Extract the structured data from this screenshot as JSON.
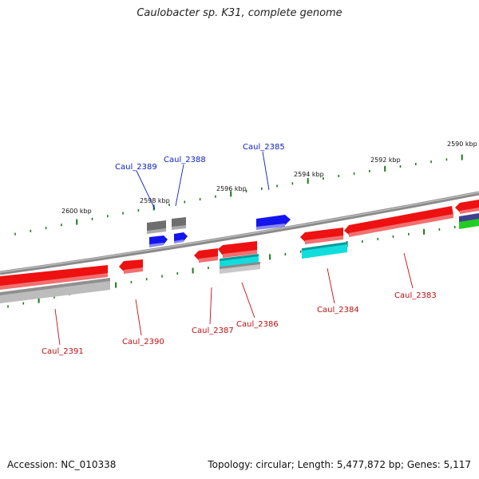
{
  "title": "Caulobacter sp. K31, complete genome",
  "footer": {
    "accession": "Accession: NC_010338",
    "summary": "Topology: circular; Length: 5,477,872 bp; Genes: 5,117"
  },
  "colors": {
    "backbone": "#8a8a8a",
    "tick": "#1a7a1a",
    "label_plus": "#1020c0",
    "label_minus": "#c01010",
    "red": "#ee1111",
    "blue": "#1414ee",
    "gray": "#6e6e6e",
    "cyan": "#11dddd",
    "lightgray": "#c8c8c8",
    "navy": "#404090",
    "green": "#22cc22"
  },
  "scale_labels": [
    "2600 kbp",
    "2598 kbp",
    "2596 kbp",
    "2594 kbp",
    "2592 kbp",
    "2590 kbp"
  ],
  "gene_labels": {
    "caul_2389": "Caul_2389",
    "caul_2388": "Caul_2388",
    "caul_2385": "Caul_2385",
    "caul_2391": "Caul_2391",
    "caul_2390": "Caul_2390",
    "caul_2387": "Caul_2387",
    "caul_2386": "Caul_2386",
    "caul_2384": "Caul_2384",
    "caul_2383": "Caul_2383"
  }
}
